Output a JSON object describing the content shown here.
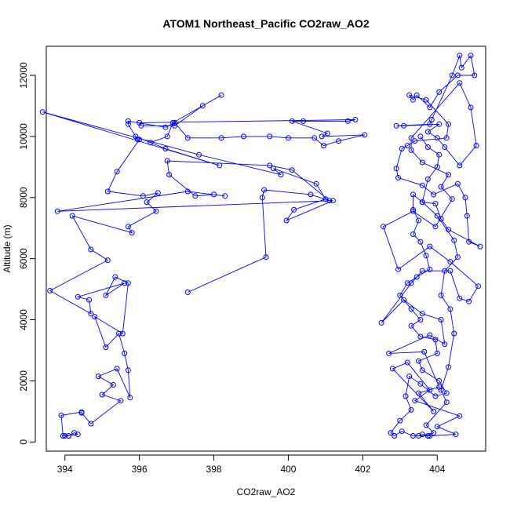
{
  "chart_data": {
    "type": "line",
    "title": "ATOM1 Northeast_Pacific CO2raw_AO2",
    "xlabel": "CO2raw_AO2",
    "ylabel": "Altitude (m)",
    "xlim": [
      393.5,
      405.3
    ],
    "ylim": [
      -300,
      12950
    ],
    "x_ticks": [
      394,
      396,
      398,
      400,
      402,
      404
    ],
    "y_ticks": [
      0,
      2000,
      4000,
      6000,
      8000,
      10000,
      12000
    ],
    "grid": false,
    "legend": "none",
    "series_color": "#0000ff",
    "markers": "open-circle",
    "series": [
      {
        "name": "",
        "points": [
          [
            394.0,
            200
          ],
          [
            394.1,
            200
          ],
          [
            394.25,
            300
          ],
          [
            394.35,
            250
          ],
          [
            393.95,
            200
          ],
          [
            393.9,
            870
          ],
          [
            394.45,
            980
          ],
          [
            394.45,
            950
          ],
          [
            394.7,
            600
          ],
          [
            395.5,
            1350
          ],
          [
            395.0,
            1550
          ],
          [
            395.3,
            1870
          ],
          [
            394.9,
            2150
          ],
          [
            395.4,
            2400
          ],
          [
            395.75,
            1450
          ],
          [
            395.7,
            2350
          ],
          [
            395.6,
            2900
          ],
          [
            395.45,
            3550
          ],
          [
            395.1,
            3100
          ],
          [
            394.8,
            4100
          ],
          [
            395.55,
            3550
          ],
          [
            395.7,
            5200
          ],
          [
            395.35,
            5400
          ],
          [
            395.1,
            4800
          ],
          [
            395.6,
            5200
          ],
          [
            394.35,
            4750
          ],
          [
            394.65,
            4650
          ],
          [
            394.7,
            4200
          ],
          [
            393.6,
            4950
          ],
          [
            395.15,
            5950
          ],
          [
            394.7,
            6300
          ],
          [
            394.2,
            7400
          ],
          [
            395.8,
            6850
          ],
          [
            395.7,
            7050
          ],
          [
            396.45,
            7550
          ],
          [
            396.2,
            7850
          ],
          [
            396.5,
            8150
          ],
          [
            396.1,
            8050
          ],
          [
            395.15,
            8200
          ],
          [
            395.4,
            8850
          ],
          [
            396.0,
            9900
          ],
          [
            395.95,
            9900
          ],
          [
            395.7,
            10400
          ],
          [
            395.7,
            10500
          ],
          [
            396.7,
            10300
          ],
          [
            396.95,
            10450
          ],
          [
            397.3,
            9950
          ],
          [
            398.2,
            9950
          ],
          [
            398.8,
            10000
          ],
          [
            399.5,
            10000
          ],
          [
            400.0,
            9950
          ],
          [
            400.7,
            9950
          ],
          [
            400.95,
            9700
          ],
          [
            401.35,
            9850
          ],
          [
            402.05,
            10050
          ],
          [
            400.9,
            10000
          ],
          [
            401.05,
            10100
          ],
          [
            400.1,
            10500
          ],
          [
            400.4,
            10500
          ],
          [
            401.6,
            10500
          ],
          [
            401.8,
            10550
          ],
          [
            396.0,
            10450
          ],
          [
            396.05,
            10350
          ],
          [
            396.95,
            10350
          ],
          [
            397.7,
            11000
          ],
          [
            398.2,
            11350
          ],
          [
            396.9,
            10450
          ],
          [
            396.75,
            10000
          ],
          [
            396.3,
            9800
          ],
          [
            395.9,
            10000
          ],
          [
            396.7,
            9600
          ],
          [
            398.15,
            9050
          ],
          [
            393.4,
            10800
          ],
          [
            397.6,
            9400
          ],
          [
            399.8,
            8750
          ],
          [
            399.6,
            8950
          ],
          [
            400.75,
            8450
          ],
          [
            401.0,
            7950
          ],
          [
            400.15,
            7600
          ],
          [
            399.95,
            7250
          ],
          [
            401.2,
            7900
          ],
          [
            393.8,
            7550
          ],
          [
            397.3,
            8200
          ],
          [
            398.3,
            8050
          ],
          [
            398.0,
            8100
          ],
          [
            397.5,
            8050
          ],
          [
            396.8,
            8750
          ],
          [
            396.75,
            9200
          ],
          [
            399.5,
            9050
          ],
          [
            400.1,
            8900
          ],
          [
            401.1,
            7900
          ],
          [
            400.6,
            8100
          ],
          [
            399.35,
            8250
          ],
          [
            399.3,
            8000
          ],
          [
            399.4,
            6050
          ],
          [
            397.3,
            4900
          ]
        ]
      },
      {
        "name": "",
        "points": [
          [
            403.5,
            200
          ],
          [
            403.6,
            250
          ],
          [
            403.8,
            200
          ],
          [
            404.5,
            250
          ],
          [
            404.0,
            500
          ],
          [
            404.6,
            850
          ],
          [
            403.4,
            1350
          ],
          [
            403.8,
            1700
          ],
          [
            403.2,
            2600
          ],
          [
            402.8,
            2400
          ],
          [
            403.9,
            1000
          ],
          [
            403.5,
            1600
          ],
          [
            404.05,
            1800
          ],
          [
            403.65,
            2950
          ],
          [
            402.7,
            2900
          ],
          [
            403.8,
            3500
          ],
          [
            404.2,
            3200
          ],
          [
            404.1,
            4000
          ],
          [
            403.6,
            4200
          ],
          [
            403.1,
            4650
          ],
          [
            402.5,
            3900
          ],
          [
            403.3,
            5200
          ],
          [
            403.6,
            5600
          ],
          [
            404.35,
            5600
          ],
          [
            404.6,
            4700
          ],
          [
            404.85,
            4600
          ],
          [
            405.1,
            5100
          ],
          [
            404.35,
            5900
          ],
          [
            403.8,
            6400
          ],
          [
            402.95,
            5650
          ],
          [
            402.55,
            7050
          ],
          [
            403.35,
            7550
          ],
          [
            403.95,
            7050
          ],
          [
            404.4,
            7950
          ],
          [
            404.1,
            8350
          ],
          [
            404.3,
            8750
          ],
          [
            403.6,
            9150
          ],
          [
            403.3,
            9550
          ],
          [
            403.3,
            9950
          ],
          [
            404.6,
            11750
          ],
          [
            404.9,
            10950
          ],
          [
            405.05,
            9700
          ],
          [
            404.6,
            9050
          ],
          [
            404.2,
            9650
          ],
          [
            404.0,
            9950
          ],
          [
            403.75,
            10150
          ],
          [
            404.05,
            10400
          ],
          [
            403.1,
            10350
          ],
          [
            402.9,
            10350
          ],
          [
            403.8,
            10400
          ],
          [
            403.85,
            10550
          ],
          [
            404.4,
            12000
          ],
          [
            404.6,
            12650
          ],
          [
            404.65,
            12250
          ],
          [
            404.9,
            12650
          ],
          [
            405.0,
            12000
          ],
          [
            404.55,
            12000
          ],
          [
            404.05,
            11450
          ],
          [
            403.8,
            10950
          ],
          [
            403.45,
            11350
          ],
          [
            403.35,
            11200
          ],
          [
            403.25,
            11350
          ],
          [
            403.7,
            11200
          ],
          [
            404.3,
            10400
          ],
          [
            404.25,
            9950
          ],
          [
            403.4,
            9850
          ],
          [
            403.2,
            9700
          ],
          [
            403.05,
            9600
          ],
          [
            402.9,
            8950
          ],
          [
            402.95,
            8650
          ],
          [
            403.6,
            8400
          ],
          [
            403.9,
            8100
          ],
          [
            404.55,
            8450
          ],
          [
            404.75,
            8000
          ],
          [
            404.8,
            7400
          ],
          [
            404.85,
            6550
          ],
          [
            405.15,
            6400
          ],
          [
            404.3,
            6950
          ],
          [
            404.1,
            7300
          ],
          [
            403.95,
            7800
          ],
          [
            403.6,
            7850
          ],
          [
            403.35,
            8100
          ],
          [
            403.35,
            7600
          ],
          [
            403.5,
            7250
          ],
          [
            403.35,
            6800
          ],
          [
            403.55,
            6550
          ],
          [
            403.7,
            6100
          ],
          [
            403.8,
            5650
          ],
          [
            403.45,
            5400
          ],
          [
            403.2,
            5200
          ],
          [
            403.0,
            4800
          ],
          [
            403.3,
            4350
          ],
          [
            403.55,
            4000
          ],
          [
            403.3,
            3800
          ],
          [
            403.55,
            3450
          ],
          [
            403.95,
            3350
          ],
          [
            404.0,
            2900
          ],
          [
            403.5,
            2650
          ],
          [
            403.6,
            2350
          ],
          [
            404.05,
            2000
          ],
          [
            404.25,
            1600
          ],
          [
            403.95,
            1500
          ],
          [
            403.55,
            1900
          ],
          [
            403.25,
            2150
          ],
          [
            403.15,
            1500
          ],
          [
            403.3,
            1050
          ],
          [
            403.0,
            700
          ],
          [
            402.75,
            300
          ],
          [
            402.85,
            200
          ],
          [
            403.05,
            350
          ],
          [
            403.35,
            200
          ],
          [
            403.75,
            200
          ],
          [
            403.9,
            300
          ],
          [
            403.7,
            550
          ],
          [
            404.25,
            1300
          ],
          [
            404.1,
            1700
          ],
          [
            404.3,
            2450
          ],
          [
            404.45,
            3550
          ],
          [
            404.35,
            4350
          ],
          [
            404.1,
            4800
          ],
          [
            404.2,
            5600
          ],
          [
            404.55,
            6050
          ],
          [
            404.45,
            6600
          ],
          [
            404.0,
            7400
          ],
          [
            403.6,
            7850
          ],
          [
            403.75,
            8600
          ],
          [
            404.0,
            9000
          ],
          [
            404.05,
            9400
          ],
          [
            403.75,
            9650
          ],
          [
            403.55,
            10000
          ]
        ]
      }
    ]
  }
}
